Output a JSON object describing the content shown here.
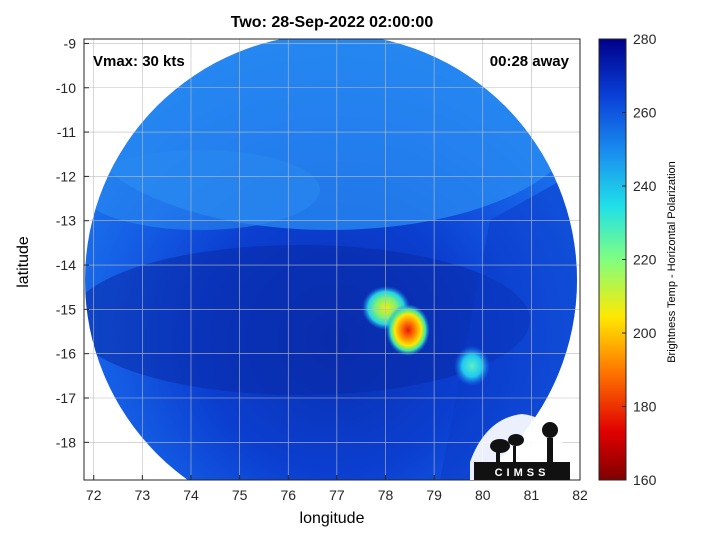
{
  "chart_data": {
    "type": "heatmap",
    "title": "Two: 28-Sep-2022 02:00:00",
    "xlabel": "longitude",
    "ylabel": "latitude",
    "xlim": [
      71.8,
      82
    ],
    "ylim": [
      -18.85,
      -8.9
    ],
    "x_ticks": [
      72,
      73,
      74,
      75,
      76,
      77,
      78,
      79,
      80,
      81,
      82
    ],
    "y_ticks": [
      -9,
      -10,
      -11,
      -12,
      -13,
      -14,
      -15,
      -16,
      -17,
      -18
    ],
    "annotations": {
      "vmax": "Vmax: 30 kts",
      "time_away": "00:28 away"
    },
    "colorbar": {
      "label": "Brightness Temp - Horizontal Polarization",
      "range": [
        160,
        280
      ],
      "ticks": [
        160,
        180,
        200,
        220,
        240,
        260,
        280
      ]
    },
    "grid": true,
    "cold_features": [
      {
        "lon": 78.0,
        "lat": -14.9,
        "temp": 212
      },
      {
        "lon": 78.5,
        "lat": -15.4,
        "temp": 190
      },
      {
        "lon": 79.85,
        "lat": -16.25,
        "temp": 232
      }
    ]
  },
  "logo": {
    "text": "CIMSS"
  }
}
